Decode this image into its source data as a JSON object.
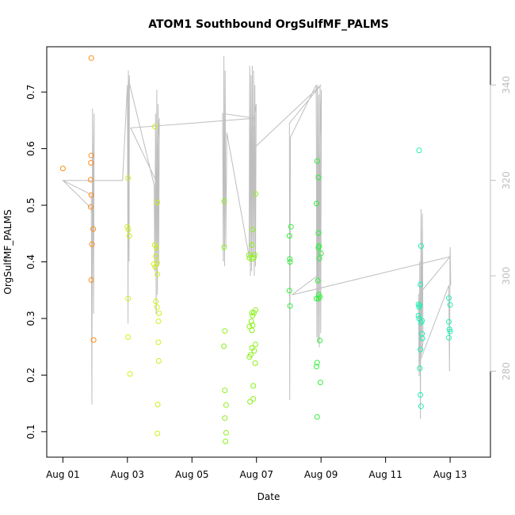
{
  "chart_data": {
    "type": "scatter",
    "title": "ATOM1 Southbound OrgSulfMF_PALMS",
    "xlabel": "Date",
    "ylabel": "OrgSulfMF_PALMS",
    "x_units": "days since Aug 01",
    "xlim": [
      -0.5,
      13.25
    ],
    "ylim": [
      0.055,
      0.78
    ],
    "y2lim": [
      262,
      348
    ],
    "x_ticks": [
      {
        "value": 0,
        "label": "Aug 01"
      },
      {
        "value": 2,
        "label": "Aug 03"
      },
      {
        "value": 4,
        "label": "Aug 05"
      },
      {
        "value": 6,
        "label": "Aug 07"
      },
      {
        "value": 8,
        "label": "Aug 09"
      },
      {
        "value": 10,
        "label": "Aug 11"
      },
      {
        "value": 12,
        "label": "Aug 13"
      }
    ],
    "y_ticks": [
      {
        "value": 0.1,
        "label": "0.1"
      },
      {
        "value": 0.2,
        "label": "0.2"
      },
      {
        "value": 0.3,
        "label": "0.3"
      },
      {
        "value": 0.4,
        "label": "0.4"
      },
      {
        "value": 0.5,
        "label": "0.5"
      },
      {
        "value": 0.6,
        "label": "0.6"
      },
      {
        "value": 0.7,
        "label": "0.7"
      }
    ],
    "y2_ticks": [
      {
        "value": 280,
        "label": "280"
      },
      {
        "value": 300,
        "label": "300"
      },
      {
        "value": 320,
        "label": "320"
      },
      {
        "value": 340,
        "label": "340"
      }
    ],
    "series": [
      {
        "name": "OrgSulfMF_PALMS points",
        "color": "#ff8c1a",
        "points": [
          [
            0.0,
            0.565
          ],
          [
            0.88,
            0.76
          ],
          [
            0.88,
            0.588
          ],
          [
            0.87,
            0.575
          ],
          [
            0.86,
            0.545
          ],
          [
            0.88,
            0.518
          ],
          [
            0.86,
            0.497
          ],
          [
            0.94,
            0.458
          ],
          [
            0.9,
            0.431
          ],
          [
            0.88,
            0.368
          ],
          [
            0.95,
            0.262
          ]
        ]
      },
      {
        "name": "OrgSulfMF_PALMS points",
        "color": "#d2ef1a",
        "points": [
          [
            2.02,
            0.548
          ],
          [
            2.0,
            0.462
          ],
          [
            2.03,
            0.457
          ],
          [
            2.06,
            0.446
          ],
          [
            2.02,
            0.335
          ],
          [
            2.02,
            0.267
          ],
          [
            2.08,
            0.202
          ],
          [
            2.85,
            0.639
          ],
          [
            2.93,
            0.505
          ],
          [
            2.85,
            0.43
          ],
          [
            2.9,
            0.425
          ],
          [
            2.88,
            0.41
          ],
          [
            2.82,
            0.396
          ],
          [
            2.92,
            0.398
          ],
          [
            2.86,
            0.391
          ],
          [
            2.93,
            0.378
          ],
          [
            2.88,
            0.33
          ],
          [
            2.92,
            0.32
          ],
          [
            2.98,
            0.309
          ],
          [
            2.96,
            0.295
          ],
          [
            2.96,
            0.258
          ],
          [
            2.97,
            0.225
          ],
          [
            2.94,
            0.148
          ],
          [
            2.93,
            0.097
          ]
        ]
      },
      {
        "name": "OrgSulfMF_PALMS points",
        "color": "#8cf01a",
        "points": [
          [
            5.0,
            0.507
          ],
          [
            5.0,
            0.426
          ],
          [
            5.02,
            0.278
          ],
          [
            4.99,
            0.251
          ],
          [
            5.02,
            0.173
          ],
          [
            5.06,
            0.147
          ],
          [
            5.02,
            0.124
          ],
          [
            5.06,
            0.098
          ],
          [
            5.04,
            0.083
          ],
          [
            5.97,
            0.52
          ],
          [
            5.88,
            0.457
          ],
          [
            5.86,
            0.43
          ],
          [
            5.77,
            0.412
          ],
          [
            5.78,
            0.407
          ],
          [
            5.94,
            0.413
          ],
          [
            5.86,
            0.405
          ],
          [
            5.92,
            0.408
          ],
          [
            5.86,
            0.31
          ],
          [
            5.92,
            0.31
          ],
          [
            5.97,
            0.315
          ],
          [
            5.88,
            0.305
          ],
          [
            5.84,
            0.295
          ],
          [
            5.88,
            0.288
          ],
          [
            5.78,
            0.286
          ],
          [
            5.86,
            0.279
          ],
          [
            5.97,
            0.254
          ],
          [
            5.86,
            0.248
          ],
          [
            5.93,
            0.243
          ],
          [
            5.82,
            0.236
          ],
          [
            5.78,
            0.232
          ],
          [
            5.96,
            0.221
          ],
          [
            5.9,
            0.181
          ],
          [
            5.9,
            0.158
          ],
          [
            5.8,
            0.153
          ]
        ]
      },
      {
        "name": "OrgSulfMF_PALMS points",
        "color": "#2ef03a",
        "points": [
          [
            7.07,
            0.462
          ],
          [
            7.02,
            0.446
          ],
          [
            7.03,
            0.405
          ],
          [
            7.04,
            0.4
          ],
          [
            7.02,
            0.349
          ],
          [
            7.04,
            0.322
          ],
          [
            7.88,
            0.578
          ],
          [
            7.92,
            0.549
          ],
          [
            7.86,
            0.503
          ],
          [
            7.92,
            0.451
          ],
          [
            7.94,
            0.428
          ],
          [
            7.92,
            0.425
          ],
          [
            8.0,
            0.415
          ],
          [
            7.95,
            0.406
          ],
          [
            7.9,
            0.367
          ],
          [
            7.93,
            0.342
          ],
          [
            7.96,
            0.338
          ],
          [
            7.92,
            0.335
          ],
          [
            7.86,
            0.335
          ],
          [
            7.96,
            0.261
          ],
          [
            7.88,
            0.222
          ],
          [
            7.86,
            0.215
          ],
          [
            7.98,
            0.187
          ],
          [
            7.88,
            0.126
          ]
        ]
      },
      {
        "name": "OrgSulfMF_PALMS points",
        "color": "#1af0b4",
        "points": [
          [
            11.04,
            0.597
          ],
          [
            11.1,
            0.428
          ],
          [
            11.08,
            0.36
          ],
          [
            11.02,
            0.325
          ],
          [
            11.06,
            0.323
          ],
          [
            11.04,
            0.32
          ],
          [
            11.02,
            0.305
          ],
          [
            11.04,
            0.3
          ],
          [
            11.13,
            0.296
          ],
          [
            11.1,
            0.293
          ],
          [
            11.13,
            0.273
          ],
          [
            11.14,
            0.265
          ],
          [
            11.08,
            0.245
          ],
          [
            11.06,
            0.212
          ],
          [
            11.08,
            0.165
          ],
          [
            11.1,
            0.145
          ],
          [
            11.96,
            0.336
          ],
          [
            12.0,
            0.324
          ],
          [
            11.96,
            0.294
          ],
          [
            11.98,
            0.281
          ],
          [
            12.0,
            0.277
          ],
          [
            11.96,
            0.266
          ]
        ]
      }
    ],
    "secondary_series": {
      "name": "Track (right axis)",
      "color": "#bebebe",
      "points": [
        [
          0.0,
          320
        ],
        [
          0.88,
          317
        ],
        [
          0.9,
          273
        ],
        [
          0.92,
          335
        ],
        [
          0.95,
          292
        ],
        [
          0.97,
          334
        ],
        [
          0.93,
          312
        ],
        [
          0.9,
          314
        ],
        [
          0.0,
          320
        ],
        [
          1.85,
          320
        ],
        [
          2.0,
          340
        ],
        [
          2.02,
          290
        ],
        [
          2.03,
          343
        ],
        [
          2.05,
          303
        ],
        [
          2.06,
          342
        ],
        [
          2.01,
          328
        ],
        [
          2.04,
          341
        ],
        [
          2.83,
          319
        ],
        [
          2.85,
          301
        ],
        [
          2.87,
          334
        ],
        [
          2.89,
          292
        ],
        [
          2.91,
          339
        ],
        [
          2.93,
          296
        ],
        [
          2.95,
          336
        ],
        [
          2.97,
          302
        ],
        [
          2.99,
          333
        ],
        [
          2.88,
          320
        ],
        [
          2.1,
          331
        ],
        [
          5.95,
          333
        ],
        [
          4.95,
          334
        ],
        [
          4.97,
          303
        ],
        [
          4.99,
          346
        ],
        [
          5.01,
          302
        ],
        [
          5.03,
          343
        ],
        [
          5.05,
          306
        ],
        [
          5.08,
          330
        ],
        [
          5.77,
          304
        ],
        [
          5.79,
          344
        ],
        [
          5.81,
          300
        ],
        [
          5.83,
          342
        ],
        [
          5.85,
          301
        ],
        [
          5.87,
          344
        ],
        [
          5.89,
          304
        ],
        [
          5.91,
          343
        ],
        [
          5.93,
          300
        ],
        [
          5.95,
          340
        ],
        [
          5.97,
          302
        ],
        [
          5.99,
          336
        ],
        [
          5.8,
          326
        ],
        [
          8.0,
          340
        ],
        [
          7.02,
          332
        ],
        [
          7.03,
          274
        ],
        [
          7.05,
          329
        ],
        [
          7.85,
          340
        ],
        [
          7.87,
          287
        ],
        [
          7.89,
          340
        ],
        [
          7.91,
          286
        ],
        [
          7.93,
          338
        ],
        [
          7.95,
          285
        ],
        [
          7.97,
          340
        ],
        [
          7.99,
          288
        ],
        [
          8.01,
          339
        ],
        [
          7.88,
          300
        ],
        [
          7.1,
          296
        ],
        [
          12.0,
          304
        ],
        [
          11.02,
          296
        ],
        [
          11.04,
          279
        ],
        [
          11.06,
          303
        ],
        [
          11.08,
          270
        ],
        [
          11.1,
          314
        ],
        [
          11.12,
          284
        ],
        [
          11.14,
          313
        ],
        [
          11.16,
          286
        ],
        [
          11.06,
          282
        ],
        [
          11.96,
          298
        ],
        [
          11.98,
          280
        ],
        [
          12.0,
          306
        ],
        [
          12.02,
          298
        ],
        [
          11.99,
          303
        ]
      ]
    }
  }
}
